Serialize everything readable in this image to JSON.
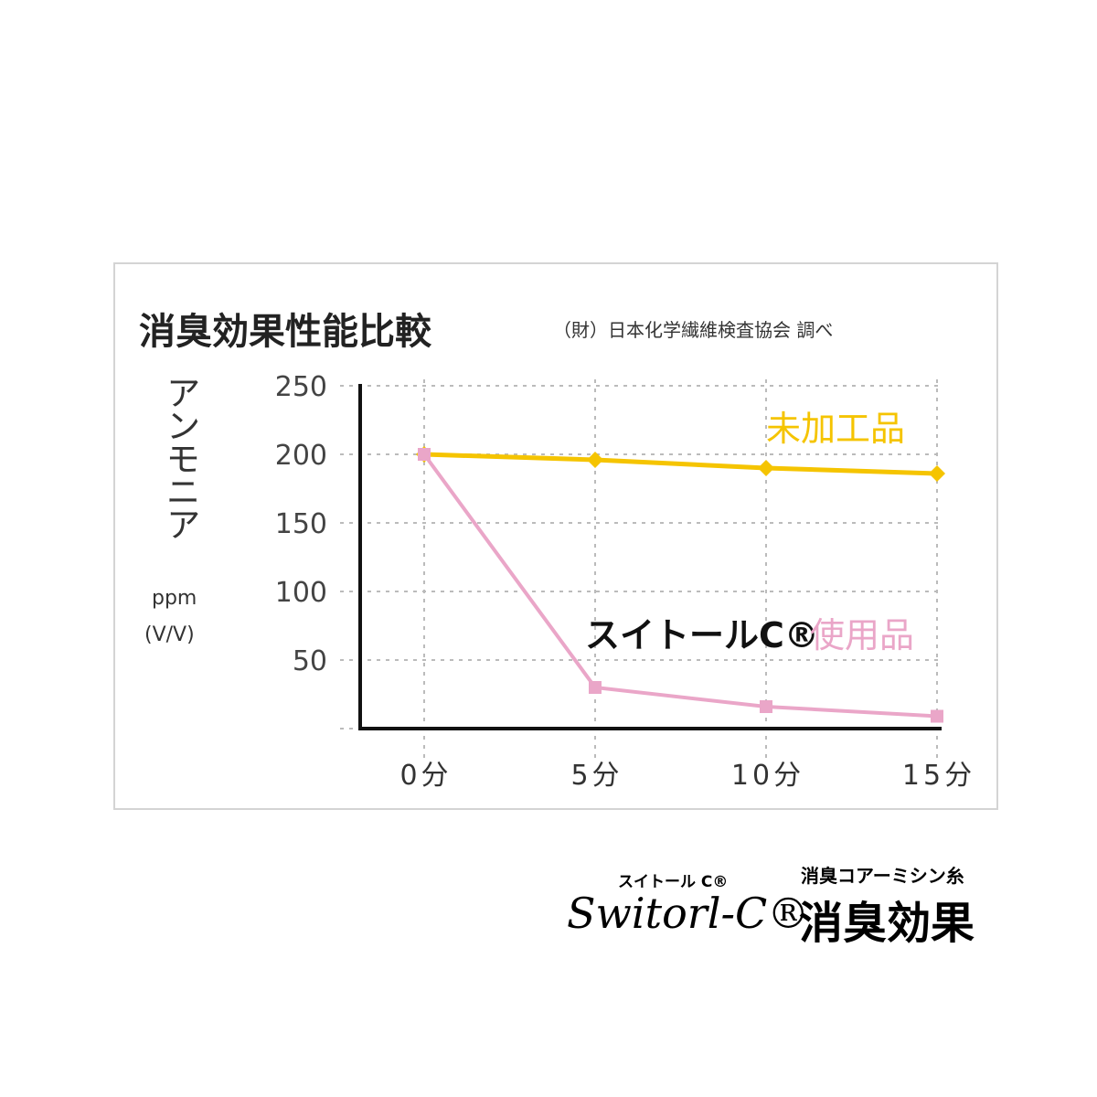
{
  "chart_data": {
    "type": "line",
    "title": "消臭効果性能比較",
    "subtitle": "（財）日本化学繊維検査協会 調べ",
    "ylabel": "アンモニア",
    "yunit": [
      "ppm",
      "(V/V)"
    ],
    "ylim": [
      0,
      250
    ],
    "yticks": [
      50,
      100,
      150,
      200,
      250
    ],
    "categories": [
      "0分",
      "5分",
      "10分",
      "15分"
    ],
    "grid": true,
    "series": [
      {
        "name": "未加工品",
        "color": "#f5c400",
        "marker": "diamond",
        "values": [
          200,
          196,
          190,
          186
        ]
      },
      {
        "name_prefix": "スイトールC®",
        "name": "使用品",
        "color": "#eaa6c8",
        "marker": "square",
        "values": [
          200,
          30,
          16,
          9
        ]
      }
    ]
  },
  "branding": {
    "small": "スイトール C®",
    "script": "Switorl-C®",
    "sub": "消臭コアーミシン糸",
    "main": "消臭効果"
  }
}
